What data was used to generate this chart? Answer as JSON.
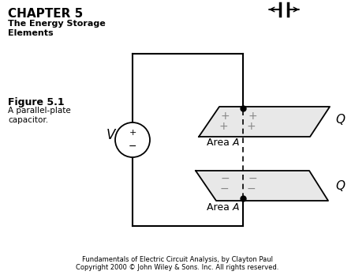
{
  "background_color": "#ffffff",
  "chapter_title": "CHAPTER 5",
  "subtitle": "The Energy Storage\nElements",
  "figure_label": "Figure 5.1",
  "figure_desc": "A parallel-plate\ncapacitor.",
  "footer1": "Fundamentals of Electric Circuit Analysis, by Clayton Paul",
  "footer2": "Copyright 2000 © John Wiley & Sons. Inc. All rights reserved.",
  "wire_color": "#000000",
  "plate_fill": "#e8e8e8"
}
